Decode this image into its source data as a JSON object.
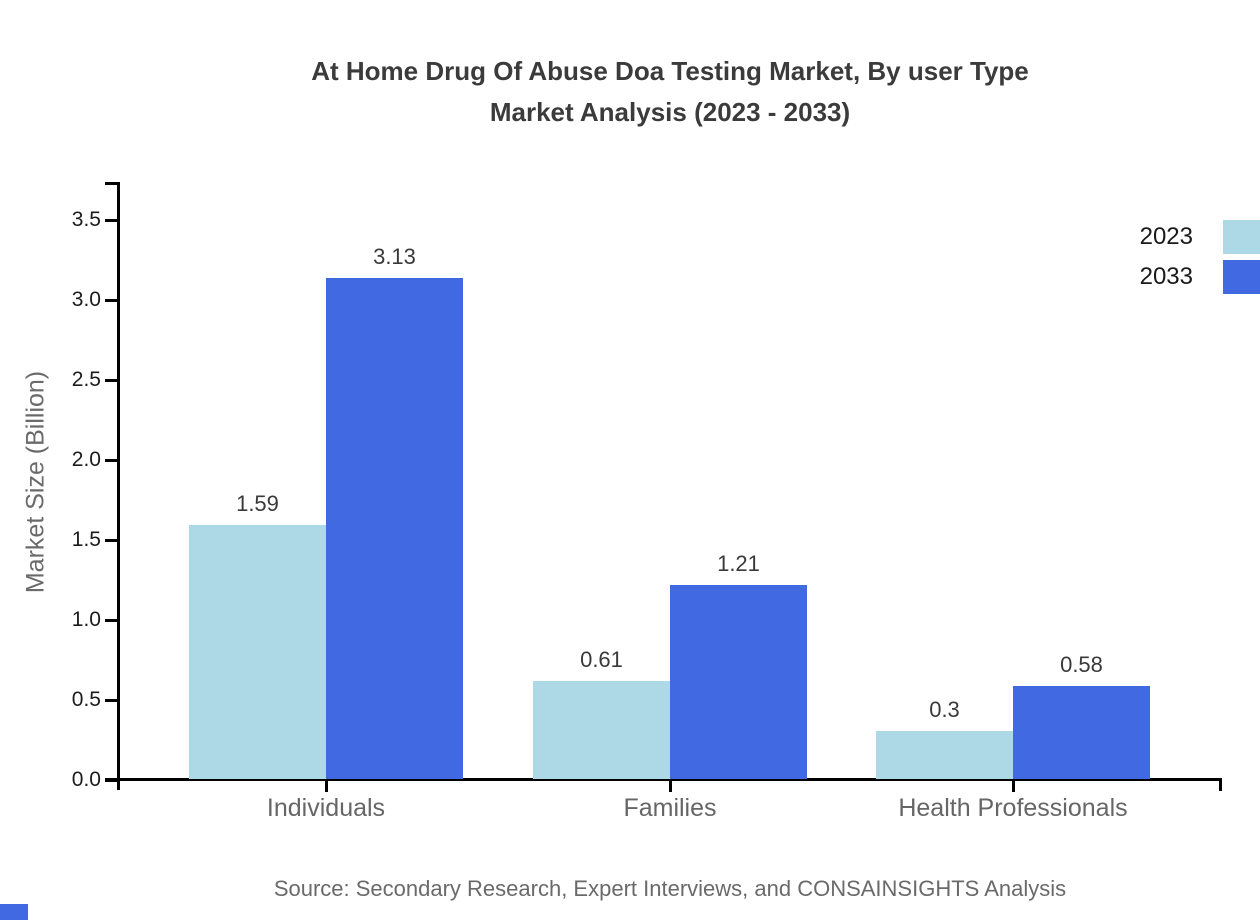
{
  "chart_data": {
    "type": "bar",
    "title": "At Home Drug Of Abuse Doa Testing Market, By user Type Market Analysis (2023 - 2033)",
    "title_lines": [
      "At Home Drug Of Abuse Doa Testing Market, By user Type",
      "Market Analysis (2023 - 2033)"
    ],
    "categories": [
      "Individuals",
      "Families",
      "Health Professionals"
    ],
    "series": [
      {
        "name": "2023",
        "color": "#ADD8E6",
        "values": [
          1.59,
          0.61,
          0.3
        ],
        "value_labels": [
          "1.59",
          "0.61",
          "0.3"
        ]
      },
      {
        "name": "2033",
        "color": "#4169E1",
        "values": [
          3.13,
          1.21,
          0.58
        ],
        "value_labels": [
          "3.13",
          "1.21",
          "0.58"
        ]
      }
    ],
    "xlabel": "",
    "ylabel": "Market Size (Billion)",
    "ylim": [
      0,
      3.75
    ],
    "yticks": [
      0.0,
      0.5,
      1.0,
      1.5,
      2.0,
      2.5,
      3.0,
      3.5
    ],
    "ytick_labels": [
      "0.0",
      "0.5",
      "1.0",
      "1.5",
      "2.0",
      "2.5",
      "3.0",
      "3.5"
    ],
    "grid": false,
    "legend_position": "top-right",
    "source_note": "Source: Secondary Research, Expert Interviews, and CONSAINSIGHTS Analysis"
  },
  "colors": {
    "series_2023": "#ADD8E6",
    "series_2033": "#4169E1",
    "axis": "#000000",
    "title_text": "#3B3B3B",
    "tick_text": "#1C1C1C",
    "muted_text": "#666666",
    "value_label_text": "#3A3A3A",
    "corner_accent": "#4169E1"
  }
}
